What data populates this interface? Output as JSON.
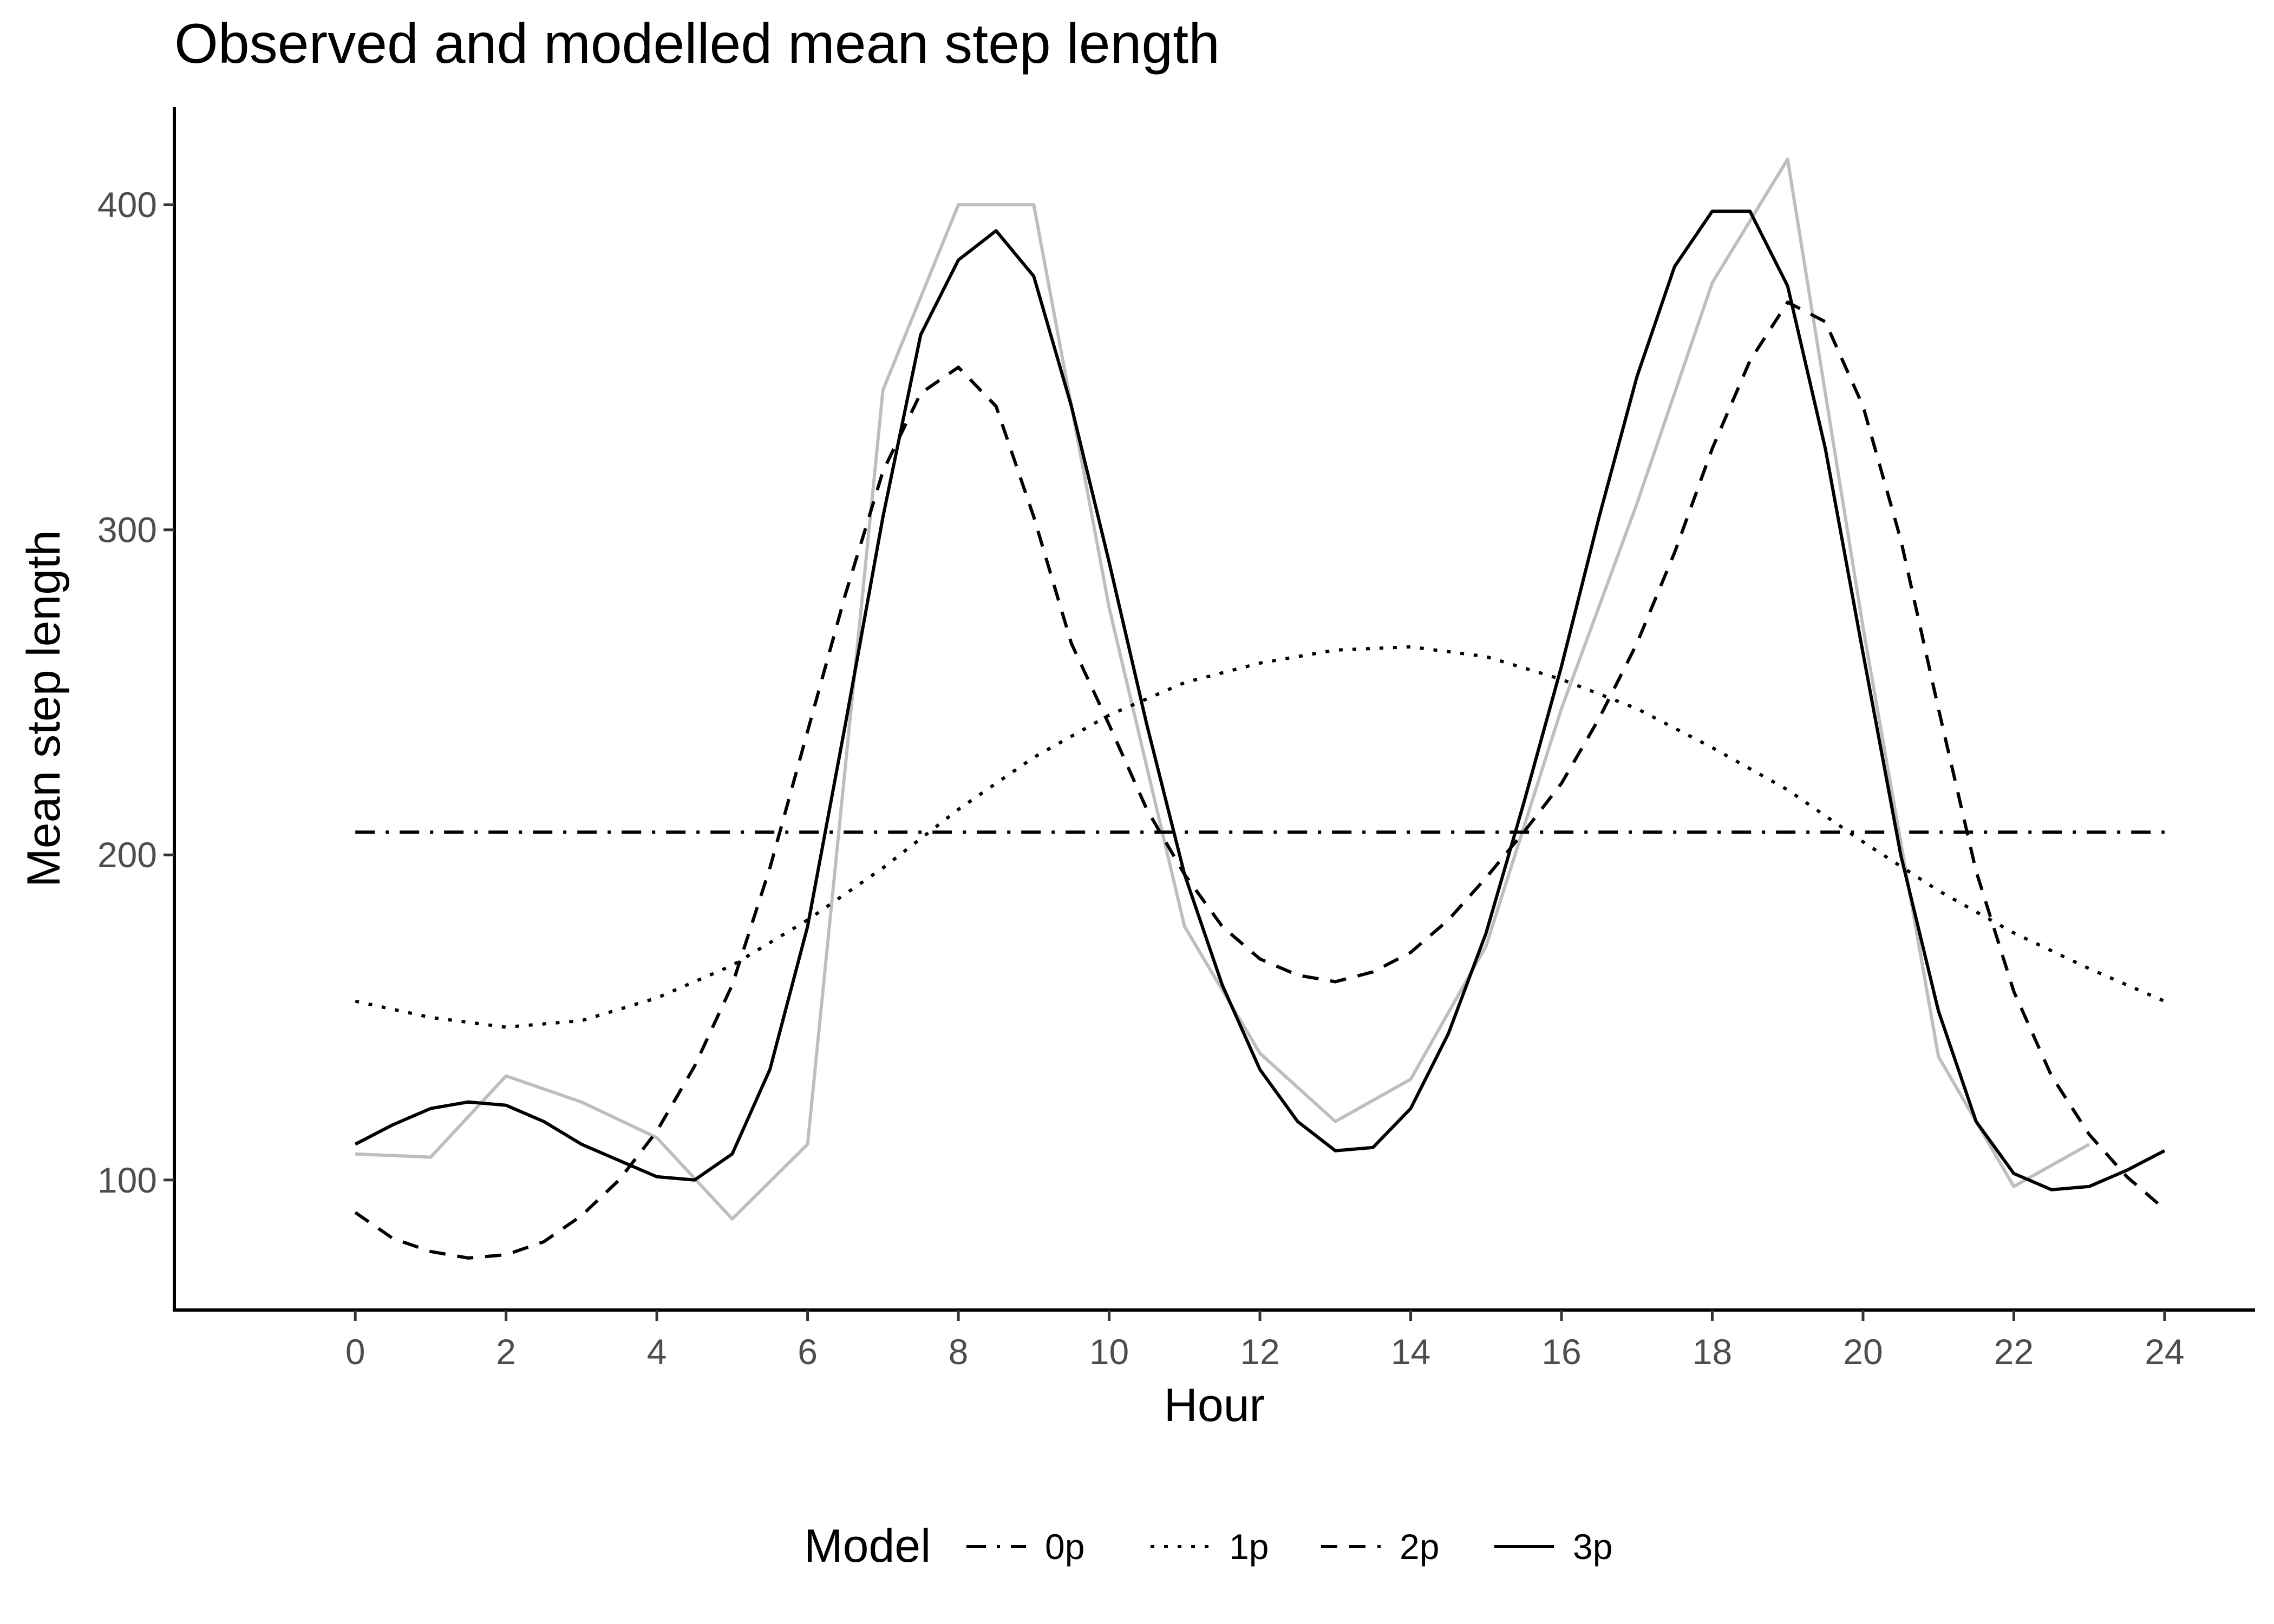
{
  "chart_data": {
    "type": "line",
    "title": "Observed and modelled mean step length",
    "xlabel": "Hour",
    "ylabel": "Mean step length",
    "xlim": [
      -2.4,
      25.2
    ],
    "ylim": [
      60,
      430
    ],
    "xticks": [
      0,
      2,
      4,
      6,
      8,
      10,
      12,
      14,
      16,
      18,
      20,
      22,
      24
    ],
    "yticks": [
      100,
      200,
      300,
      400
    ],
    "grid": false,
    "legend": {
      "placement": "bottom",
      "title": "Model",
      "entries": [
        "0p",
        "1p",
        "2p",
        "3p"
      ]
    },
    "observed": {
      "color": "#bebebe",
      "x": [
        0,
        1,
        2,
        3,
        4,
        5,
        6,
        7,
        8,
        9,
        10,
        11,
        12,
        13,
        14,
        15,
        16,
        17,
        18,
        19,
        20,
        21,
        22,
        23
      ],
      "y": [
        108,
        107,
        132,
        124,
        113,
        88,
        111,
        343,
        400,
        400,
        276,
        178,
        139,
        118,
        131,
        172,
        245,
        308,
        376,
        414,
        270,
        138,
        98,
        111
      ]
    },
    "series": [
      {
        "name": "0p",
        "dash": "0p",
        "x": [
          0,
          2,
          4,
          6,
          8,
          10,
          12,
          14,
          16,
          18,
          20,
          22,
          24
        ],
        "y": [
          207,
          207,
          207,
          207,
          207,
          207,
          207,
          207,
          207,
          207,
          207,
          207,
          207
        ]
      },
      {
        "name": "1p",
        "dash": "1p",
        "x": [
          0,
          1,
          2,
          3,
          4,
          5,
          6,
          7,
          8,
          9,
          10,
          11,
          12,
          13,
          14,
          15,
          16,
          17,
          18,
          19,
          20,
          21,
          22,
          23,
          24
        ],
        "y": [
          155,
          150,
          147,
          149,
          156,
          166,
          180,
          196,
          214,
          230,
          243,
          253,
          259,
          263,
          264,
          261,
          254,
          245,
          233,
          220,
          204,
          189,
          176,
          165,
          155
        ]
      },
      {
        "name": "2p",
        "dash": "2p",
        "x": [
          0,
          0.5,
          1,
          1.5,
          2,
          2.5,
          3,
          3.5,
          4,
          4.5,
          5,
          5.5,
          6,
          6.5,
          7,
          7.5,
          8,
          8.5,
          9,
          9.5,
          10,
          10.5,
          11,
          11.5,
          12,
          12.5,
          13,
          13.5,
          14,
          14.5,
          15,
          15.5,
          16,
          16.5,
          17,
          17.5,
          18,
          18.5,
          19,
          19.5,
          20,
          20.5,
          21,
          21.5,
          22,
          22.5,
          23,
          23.5,
          24
        ],
        "y": [
          90,
          82,
          78,
          76,
          77,
          81,
          89,
          100,
          115,
          135,
          160,
          196,
          238,
          280,
          318,
          342,
          350,
          338,
          304,
          265,
          240,
          214,
          194,
          178,
          168,
          163,
          161,
          164,
          170,
          180,
          193,
          207,
          222,
          242,
          265,
          293,
          325,
          352,
          370,
          364,
          338,
          297,
          245,
          195,
          158,
          132,
          114,
          101,
          91
        ]
      },
      {
        "name": "3p",
        "dash": "3p",
        "x": [
          0,
          0.5,
          1,
          1.5,
          2,
          2.5,
          3,
          3.5,
          4,
          4.5,
          5,
          5.5,
          6,
          6.5,
          7,
          7.5,
          8,
          8.5,
          9,
          9.5,
          10,
          10.5,
          11,
          11.5,
          12,
          12.5,
          13,
          13.5,
          14,
          14.5,
          15,
          15.5,
          16,
          16.5,
          17,
          17.5,
          18,
          18.5,
          19,
          19.5,
          20,
          20.5,
          21,
          21.5,
          22,
          22.5,
          23,
          23.5,
          24
        ],
        "y": [
          111,
          117,
          122,
          124,
          123,
          118,
          111,
          106,
          101,
          100,
          108,
          134,
          178,
          240,
          304,
          360,
          383,
          392,
          378,
          338,
          290,
          240,
          194,
          160,
          134,
          118,
          109,
          110,
          122,
          145,
          176,
          216,
          258,
          304,
          347,
          381,
          398,
          398,
          375,
          325,
          262,
          200,
          152,
          118,
          102,
          97,
          98,
          103,
          109
        ]
      }
    ]
  }
}
